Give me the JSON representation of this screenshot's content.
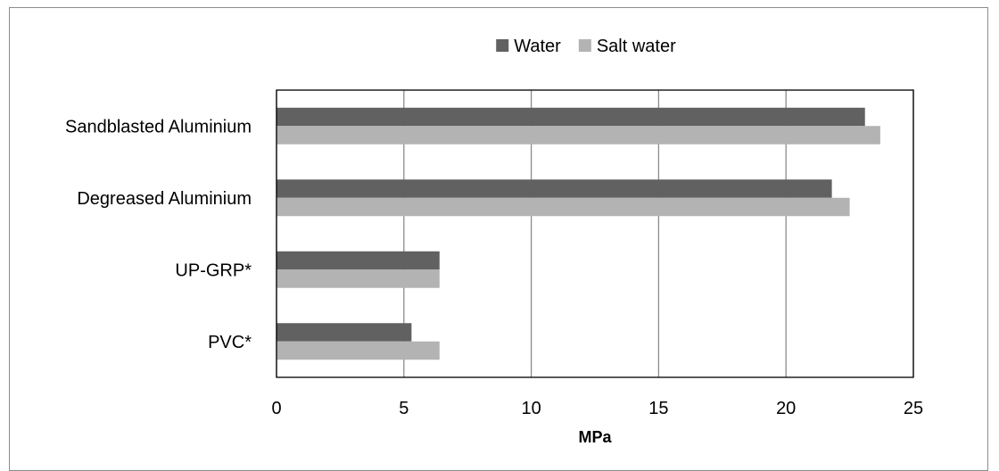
{
  "chart_data": {
    "type": "bar",
    "orientation": "horizontal",
    "categories": [
      "Sandblasted Aluminium",
      "Degreased Aluminium",
      "UP-GRP*",
      "PVC*"
    ],
    "series": [
      {
        "name": "Water",
        "color": "#616161",
        "values": [
          23.1,
          21.8,
          6.4,
          5.3
        ]
      },
      {
        "name": "Salt water",
        "color": "#b3b3b3",
        "values": [
          23.7,
          22.5,
          6.4,
          6.4
        ]
      }
    ],
    "xlabel": "MPa",
    "xlim": [
      0,
      25
    ],
    "xticks": [
      "0",
      "5",
      "10",
      "15",
      "20",
      "25"
    ],
    "grid": "vertical",
    "legend": "top-center"
  }
}
